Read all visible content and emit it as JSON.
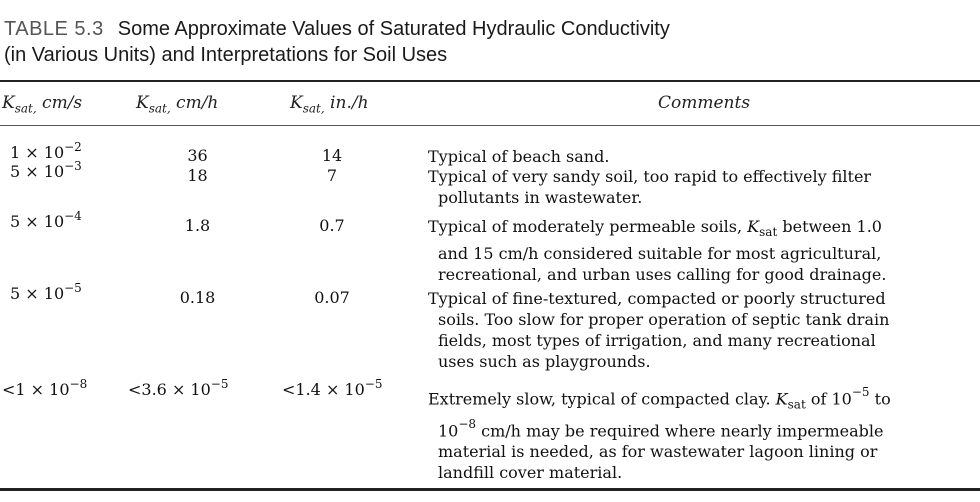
{
  "table": {
    "label": "TABLE 5.3",
    "title_line1": "Some Approximate Values of Saturated Hydraulic Conductivity",
    "title_line2": "(in Various Units) and Interpretations for Soil Uses",
    "headers": {
      "k": "K",
      "c1_sub": "sat,",
      "c1_unit": " cm/s",
      "c2_sub": "sat,",
      "c2_unit": " cm/h",
      "c3_sub": "sat,",
      "c3_unit": " in./h",
      "comments": "Comments"
    },
    "rows": [
      {
        "c1_base": "1 × 10",
        "c1_exp": "−2",
        "c2": "36",
        "c3": "14",
        "comment": [
          "Typical of beach sand."
        ]
      },
      {
        "c1_base": "5 × 10",
        "c1_exp": "−3",
        "c2": "18",
        "c3": "7",
        "comment": [
          "Typical of very sandy soil, too rapid to effectively filter",
          "pollutants in wastewater."
        ]
      },
      {
        "c1_base": "5 × 10",
        "c1_exp": "−4",
        "c2": "1.8",
        "c3": "0.7",
        "comment_pre": "Typical of moderately permeable soils, ",
        "comment_k": "K",
        "comment_sub": "sat",
        "comment_post": " between 1.0",
        "comment": [
          "and 15 cm/h considered suitable for most agricultural,",
          "recreational, and urban uses calling for good drainage."
        ]
      },
      {
        "c1_base": "5 × 10",
        "c1_exp": "−5",
        "c2": "0.18",
        "c3": "0.07",
        "comment": [
          "Typical of fine-textured, compacted or poorly structured",
          "soils. Too slow for proper operation of septic tank drain",
          "fields, most types of irrigation, and many recreational",
          "uses such as playgrounds."
        ]
      },
      {
        "c1_base": "<1 × 10",
        "c1_exp": "−8",
        "c2_base": "<3.6 × 10",
        "c2_exp": "−5",
        "c3_base": "<1.4 × 10",
        "c3_exp": "−5",
        "comment_pre": "Extremely slow, typical of compacted clay. ",
        "comment_k": "K",
        "comment_sub": "sat",
        "comment_mid": " of 10",
        "comment_sup1": "−5",
        "comment_post": " to",
        "comment_l2_base": "10",
        "comment_l2_sup": "−8",
        "comment_l2_rest": " cm/h may be required where nearly impermeable",
        "comment": [
          "material is needed, as for wastewater lagoon lining or",
          "landfill cover material."
        ]
      }
    ]
  }
}
